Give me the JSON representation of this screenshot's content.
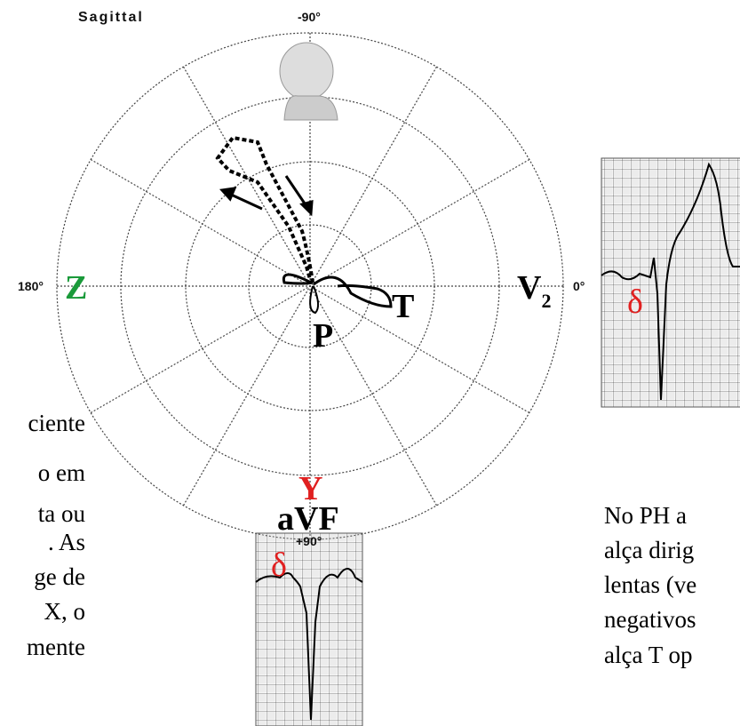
{
  "plane": {
    "title": "Sagittal",
    "angle_top": "-90°",
    "angle_left": "180°",
    "angle_right": "0°",
    "angle_bottom": "+90°"
  },
  "labels": {
    "z": "Z",
    "v2": {
      "label": "V",
      "subscript": "2"
    },
    "t": "T",
    "p": "P",
    "y": "Y",
    "avf": "aVF",
    "delta_right": "δ",
    "delta_bottom": "δ"
  },
  "left_text": [
    "ciente",
    "o em",
    "ta ou",
    ". As",
    "ge de",
    "X, o",
    "mente"
  ],
  "right_text": [
    "No PH a",
    "alça dirig",
    "lentas (ve",
    "negativos",
    "alça T op"
  ]
}
